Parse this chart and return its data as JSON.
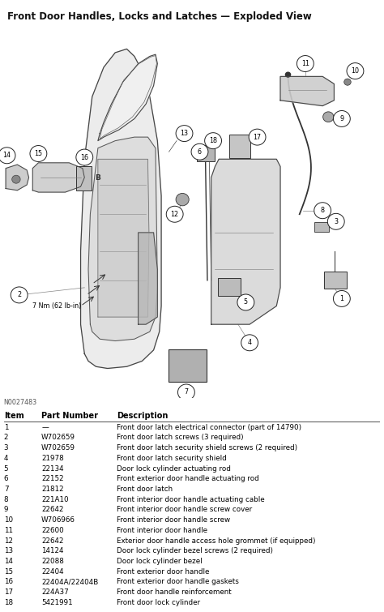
{
  "title": "Front Door Handles, Locks and Latches — Exploded View",
  "figure_id": "N0027483",
  "bg_color": "#ffffff",
  "title_fontsize": 8.5,
  "table_header": [
    "Item",
    "Part Number",
    "Description"
  ],
  "table_rows": [
    [
      "1",
      "—",
      "Front door latch electrical connector (part of 14790)"
    ],
    [
      "2",
      "W702659",
      "Front door latch screws (3 required)"
    ],
    [
      "3",
      "W702659",
      "Front door latch security shield screws (2 required)"
    ],
    [
      "4",
      "21978",
      "Front door latch security shield"
    ],
    [
      "5",
      "22134",
      "Door lock cylinder actuating rod"
    ],
    [
      "6",
      "22152",
      "Front exterior door handle actuating rod"
    ],
    [
      "7",
      "21812",
      "Front door latch"
    ],
    [
      "8",
      "221A10",
      "Front interior door handle actuating cable"
    ],
    [
      "9",
      "22642",
      "Front interior door handle screw cover"
    ],
    [
      "10",
      "W706966",
      "Front interior door handle screw"
    ],
    [
      "11",
      "22600",
      "Front interior door handle"
    ],
    [
      "12",
      "22642",
      "Exterior door handle access hole grommet (if equipped)"
    ],
    [
      "13",
      "14124",
      "Door lock cylinder bezel screws (2 required)"
    ],
    [
      "14",
      "22088",
      "Door lock cylinder bezel"
    ],
    [
      "15",
      "22404",
      "Front exterior door handle"
    ],
    [
      "16",
      "22404A/22404B",
      "Front exterior door handle gaskets"
    ],
    [
      "17",
      "224A37",
      "Front door handle reinforcement"
    ],
    [
      "18",
      "5421991",
      "Front door lock cylinder"
    ]
  ],
  "table_fontsize": 6.3,
  "header_fontsize": 7.0,
  "torque_label": "7 Nm (62 lb-in)"
}
